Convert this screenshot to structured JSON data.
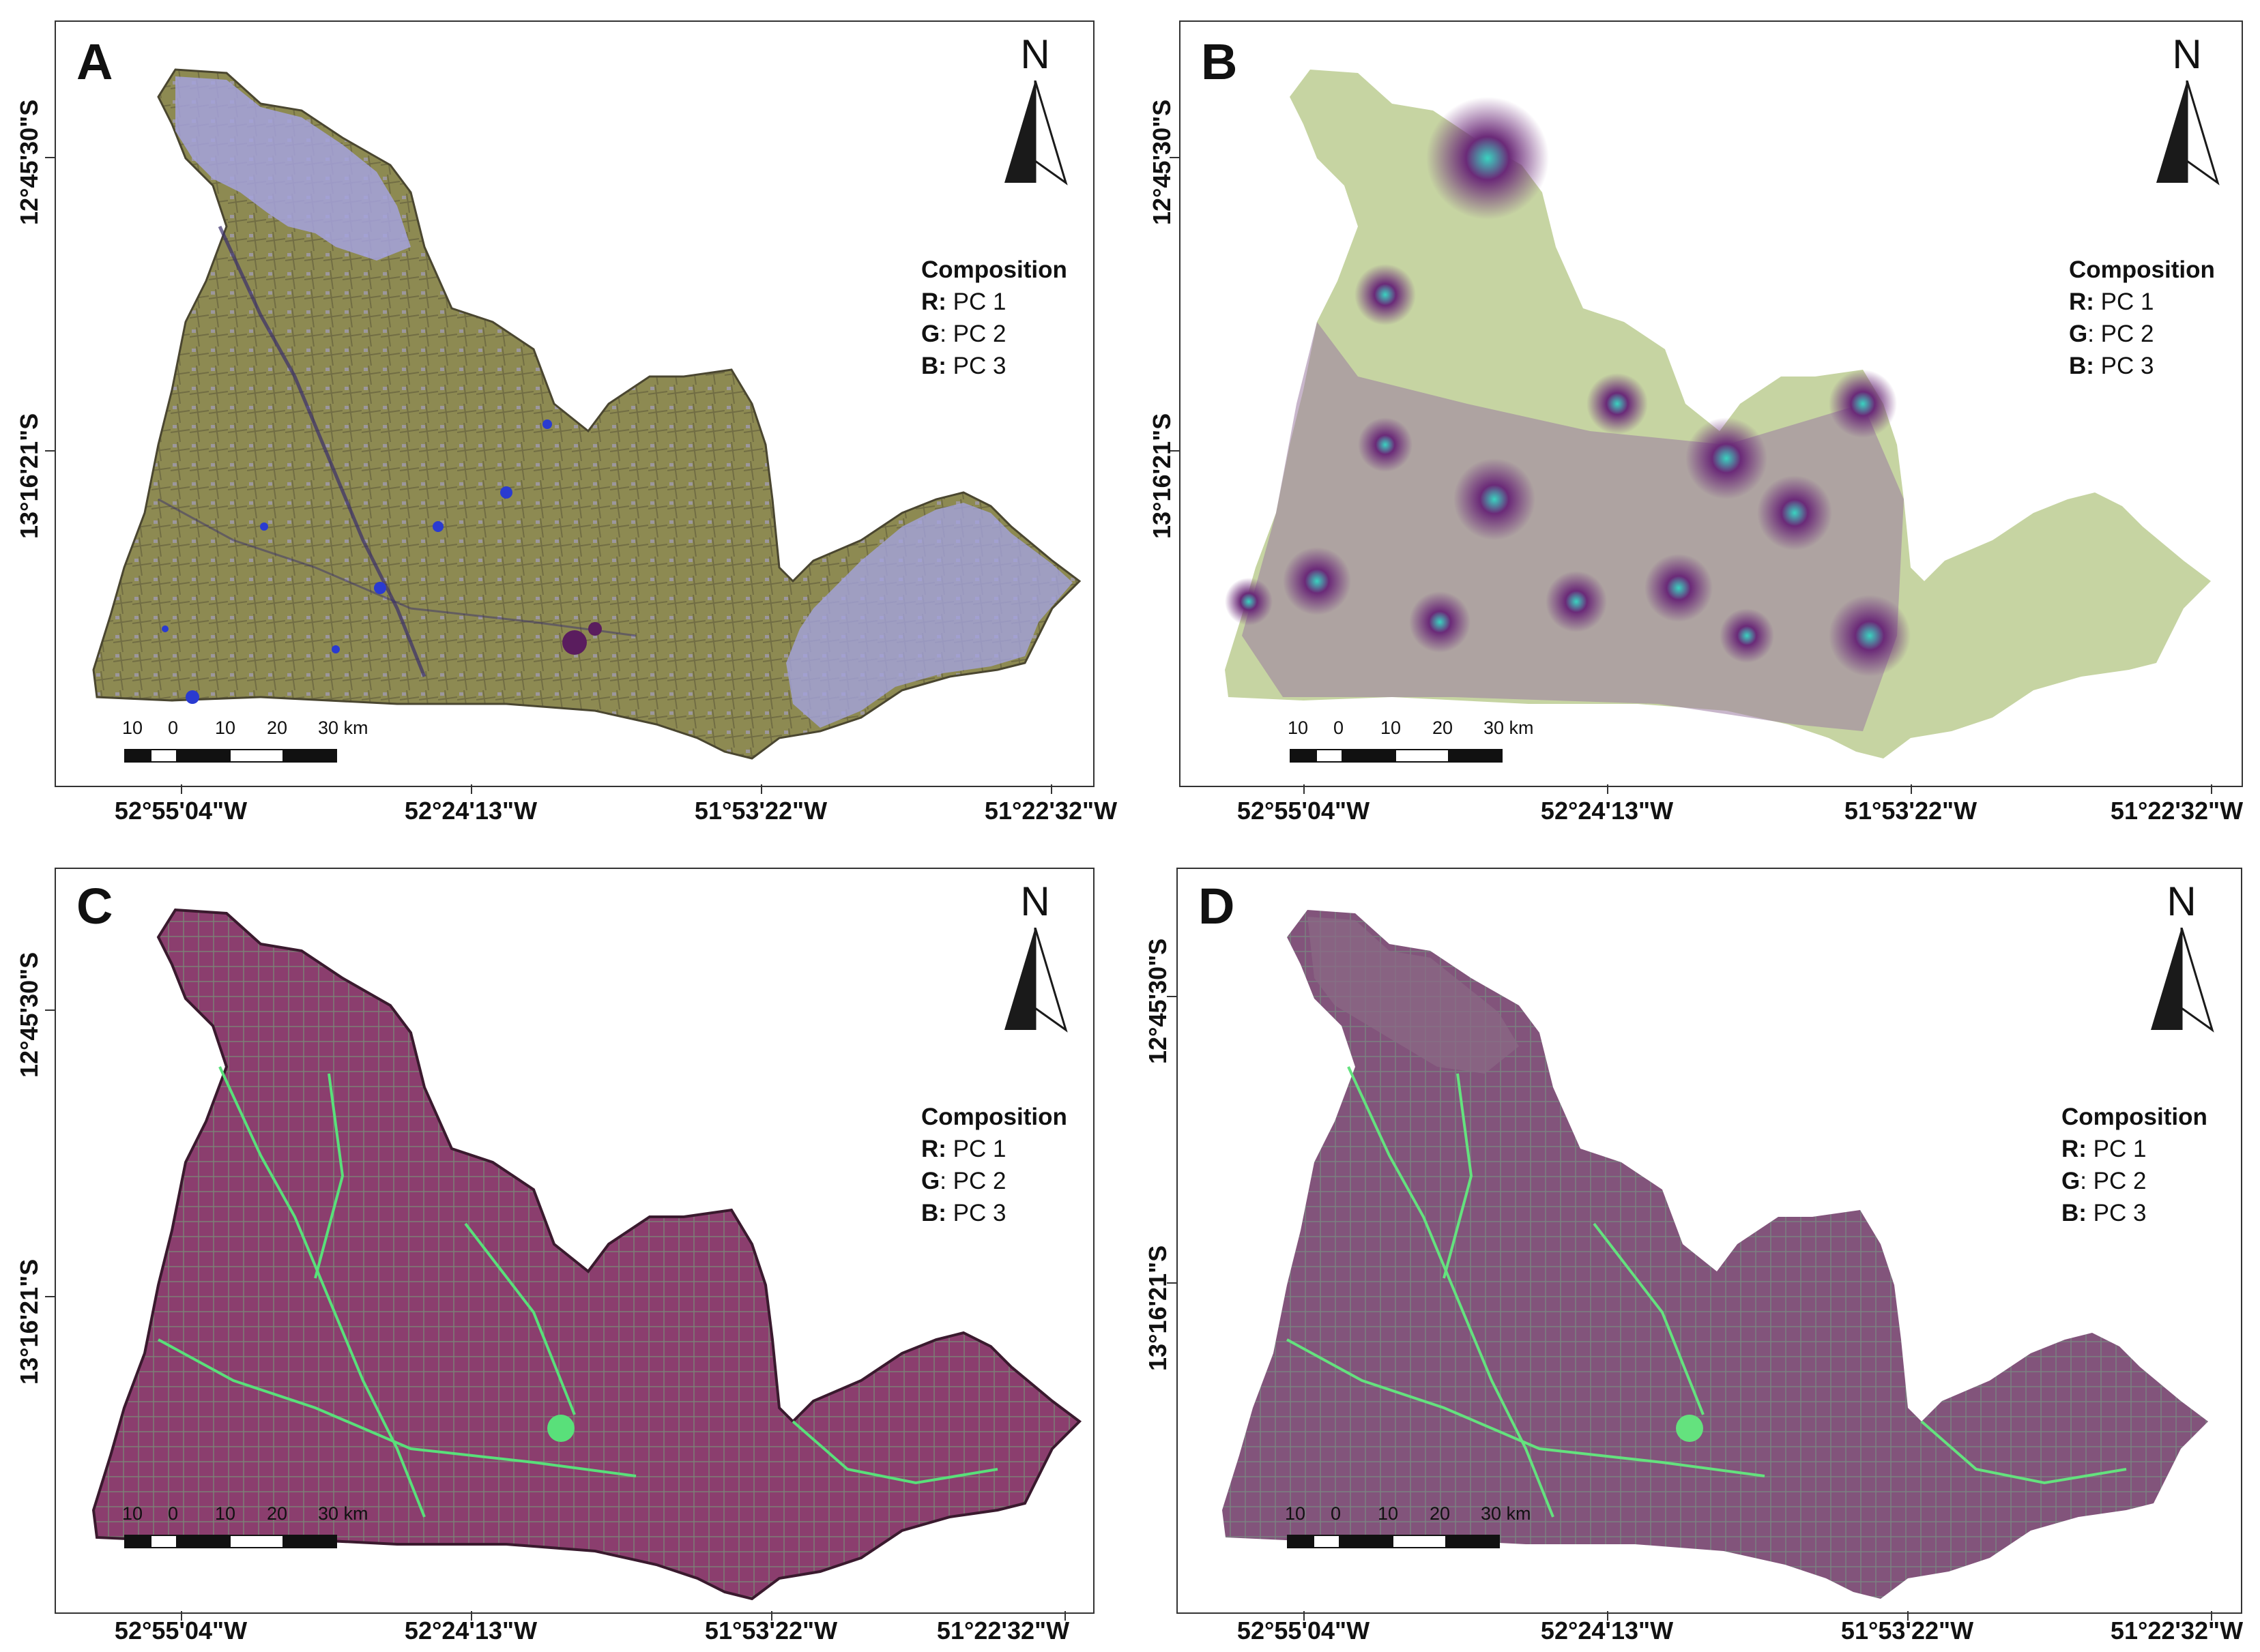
{
  "panels": [
    {
      "id": "A",
      "label": "A",
      "fill_colors": {
        "base": "#8d8a52",
        "light": "#a4a2dd",
        "dark": "#3a2f6b",
        "accent": "#2a3bd1"
      },
      "north_label": "N",
      "legend": {
        "title": "Composition",
        "r_key": "R:",
        "r_val": "PC 1",
        "g_key": "G",
        "g_val": ": PC 2",
        "b_key": "B:",
        "b_val": "PC 3"
      },
      "scale": {
        "t1": "10",
        "t2": "0",
        "t3": "10",
        "t4": "20",
        "t5": "30 km"
      },
      "x_labels": [
        "52°55'04\"W",
        "52°24'13\"W",
        "51°53'22\"W",
        "51°22'32\"W"
      ],
      "y_labels": [
        "12°45'30\"S",
        "13°16'21\"S"
      ]
    },
    {
      "id": "B",
      "label": "B",
      "fill_colors": {
        "base": "#c6d4a2",
        "light": "#d2dcae",
        "dark": "#6b2a78",
        "accent": "#3ad3c0"
      },
      "north_label": "N",
      "legend": {
        "title": "Composition",
        "r_key": "R:",
        "r_val": "PC 1",
        "g_key": "G",
        "g_val": ": PC 2",
        "b_key": "B:",
        "b_val": "PC 3"
      },
      "scale": {
        "t1": "10",
        "t2": "0",
        "t3": "10",
        "t4": "20",
        "t5": "30 km"
      },
      "x_labels": [
        "52°55'04\"W",
        "52°24'13\"W",
        "51°53'22\"W",
        "51°22'32\"W"
      ],
      "y_labels": [
        "12°45'30\"S",
        "13°16'21\"S"
      ]
    },
    {
      "id": "C",
      "label": "C",
      "fill_colors": {
        "base": "#8b3e6e",
        "light": "#8e4a74",
        "dark": "#5a2a4a",
        "accent": "#59e07a"
      },
      "north_label": "N",
      "legend": {
        "title": "Composition",
        "r_key": "R:",
        "r_val": "PC 1",
        "g_key": "G",
        "g_val": ": PC 2",
        "b_key": "B:",
        "b_val": "PC 3"
      },
      "scale": {
        "t1": "10",
        "t2": "0",
        "t3": "10",
        "t4": "20",
        "t5": "30 km"
      },
      "x_labels": [
        "52°55'04\"W",
        "52°24'13\"W",
        "51°53'22\"W",
        "51°22'32\"W"
      ],
      "y_labels": [
        "12°45'30\"S",
        "13°16'21\"S"
      ]
    },
    {
      "id": "D",
      "label": "D",
      "fill_colors": {
        "base": "#82547b",
        "light": "#8a6a86",
        "dark": "#5d4058",
        "accent": "#64e27e"
      },
      "north_label": "N",
      "legend": {
        "title": "Composition",
        "r_key": "R:",
        "r_val": "PC 1",
        "g_key": "G",
        "g_val": ": PC 2",
        "b_key": "B:",
        "b_val": "PC 3"
      },
      "scale": {
        "t1": "10",
        "t2": "0",
        "t3": "10",
        "t4": "20",
        "t5": "30 km"
      },
      "x_labels": [
        "52°55'04\"W",
        "52°24'13\"W",
        "51°53'22\"W",
        "51°22'32\"W"
      ],
      "y_labels": [
        "12°45'30\"S",
        "13°16'21\"S"
      ]
    }
  ]
}
